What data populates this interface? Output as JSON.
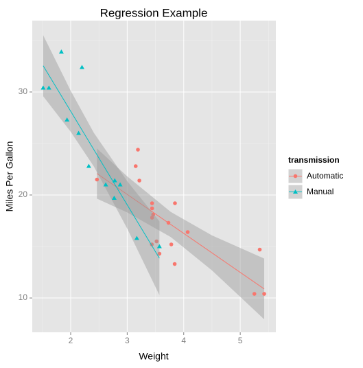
{
  "chart_data": {
    "type": "scatter",
    "title": "Regression Example",
    "xlabel": "Weight",
    "ylabel": "Miles Per Gallon",
    "xlim": [
      1.32,
      5.63
    ],
    "ylim": [
      6.67,
      36.93
    ],
    "xticks": [
      2,
      3,
      4,
      5
    ],
    "yticks": [
      10,
      20,
      30
    ],
    "xminor": [
      1.5,
      2.5,
      3.5,
      4.5,
      5.5
    ],
    "yminor": [
      15,
      25,
      35
    ],
    "grid": true,
    "legend_title": "transmission",
    "legend_position": "right",
    "series": [
      {
        "name": "Automatic",
        "color": "#F8766D",
        "marker": "circle",
        "x": [
          3.215,
          3.44,
          3.46,
          3.57,
          3.19,
          3.15,
          3.44,
          3.44,
          4.07,
          3.73,
          3.78,
          5.25,
          5.424,
          5.345,
          2.465,
          3.52,
          3.435,
          3.84,
          3.845
        ],
        "values": [
          21.4,
          18.7,
          18.1,
          14.3,
          24.4,
          22.8,
          19.2,
          17.8,
          16.4,
          17.3,
          15.2,
          10.4,
          10.4,
          14.7,
          21.5,
          15.5,
          15.2,
          13.3,
          19.2
        ],
        "band_x": [
          2.465,
          3.0,
          3.77,
          4.5,
          5.424
        ],
        "fit": [
          22.08,
          20.06,
          17.14,
          14.38,
          10.88
        ],
        "band_lower": [
          19.64,
          18.31,
          15.92,
          12.68,
          7.93
        ],
        "band_upper": [
          24.52,
          21.81,
          18.36,
          16.08,
          13.83
        ]
      },
      {
        "name": "Manual",
        "color": "#00BFC4",
        "marker": "triangle",
        "x": [
          2.62,
          2.875,
          2.32,
          2.2,
          1.615,
          1.835,
          1.935,
          2.14,
          1.513,
          3.17,
          2.77,
          3.57,
          2.78
        ],
        "values": [
          21,
          21,
          22.8,
          32.4,
          30.4,
          33.9,
          27.3,
          26,
          30.4,
          15.8,
          19.7,
          15,
          21.4
        ],
        "band_x": [
          1.513,
          2.0,
          2.411,
          3.0,
          3.57
        ],
        "fit": [
          32.55,
          28.13,
          24.39,
          19.04,
          13.86
        ],
        "band_lower": [
          29.59,
          26.14,
          22.76,
          16.74,
          10.28
        ],
        "band_upper": [
          35.51,
          30.12,
          26.02,
          21.34,
          17.44
        ]
      }
    ]
  }
}
